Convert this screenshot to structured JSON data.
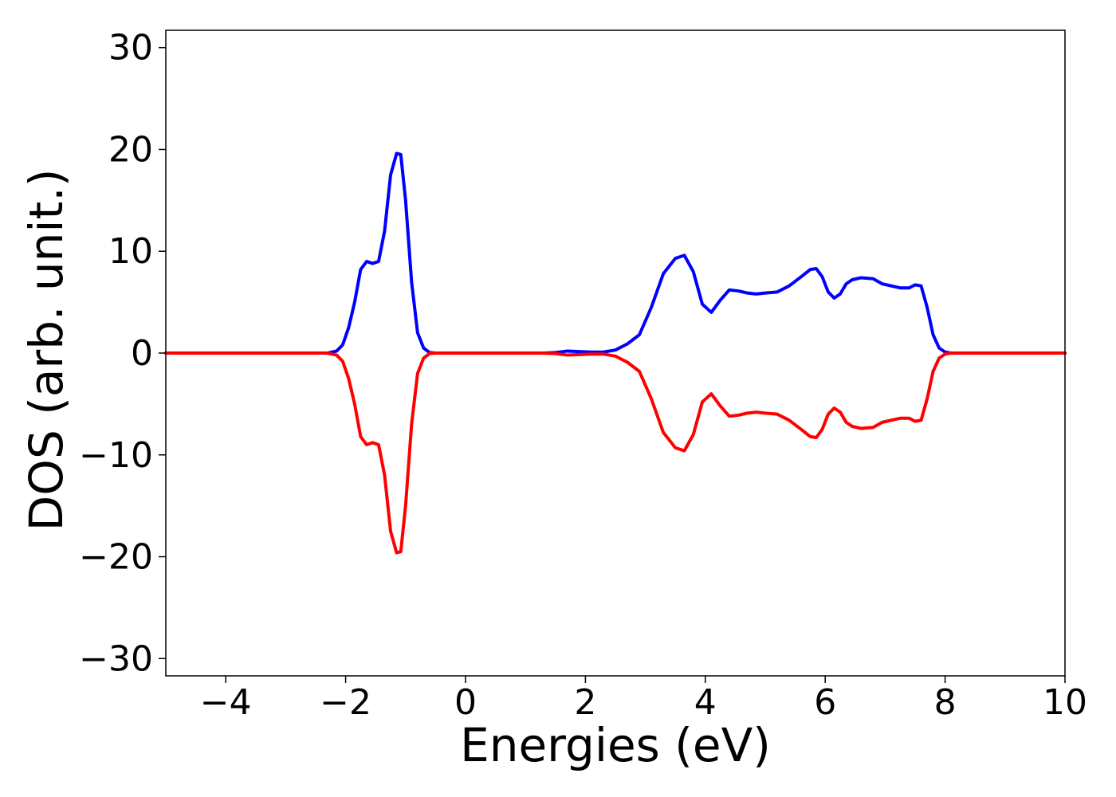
{
  "chart_data": {
    "type": "line",
    "title": "",
    "xlabel": "Energies (eV)",
    "ylabel": "DOS (arb. unit.)",
    "xlim": [
      -5,
      10
    ],
    "ylim": [
      -31.7,
      31.7
    ],
    "xticks": [
      -4,
      -2,
      0,
      2,
      4,
      6,
      8,
      10
    ],
    "yticks": [
      -30,
      -20,
      -10,
      0,
      10,
      20,
      30
    ],
    "xtick_labels": [
      "−4",
      "−2",
      "0",
      "2",
      "4",
      "6",
      "8",
      "10"
    ],
    "ytick_labels": [
      "−30",
      "−20",
      "−10",
      "0",
      "10",
      "20",
      "30"
    ],
    "grid": false,
    "legend": "none",
    "series": [
      {
        "color": "#0000ff",
        "x": [
          -5.0,
          -2.3,
          -2.15,
          -2.05,
          -1.95,
          -1.85,
          -1.75,
          -1.65,
          -1.55,
          -1.45,
          -1.35,
          -1.25,
          -1.15,
          -1.08,
          -1.0,
          -0.9,
          -0.8,
          -0.7,
          -0.6,
          -0.5,
          1.3,
          1.5,
          1.7,
          1.9,
          2.1,
          2.3,
          2.5,
          2.7,
          2.9,
          3.1,
          3.3,
          3.5,
          3.65,
          3.8,
          3.95,
          4.1,
          4.25,
          4.4,
          4.55,
          4.7,
          4.85,
          5.0,
          5.2,
          5.4,
          5.6,
          5.75,
          5.85,
          5.95,
          6.05,
          6.15,
          6.25,
          6.35,
          6.45,
          6.6,
          6.8,
          6.95,
          7.1,
          7.25,
          7.4,
          7.5,
          7.6,
          7.7,
          7.8,
          7.9,
          8.0,
          8.1,
          8.2,
          8.3,
          10.0
        ],
        "y": [
          0.0,
          0.0,
          0.2,
          0.8,
          2.5,
          5.0,
          8.2,
          9.0,
          8.8,
          9.0,
          12.0,
          17.5,
          19.6,
          19.5,
          15.0,
          7.0,
          2.0,
          0.5,
          0.05,
          0.0,
          0.0,
          0.05,
          0.2,
          0.15,
          0.1,
          0.1,
          0.3,
          0.9,
          1.8,
          4.5,
          7.8,
          9.3,
          9.6,
          8.0,
          4.8,
          4.0,
          5.2,
          6.2,
          6.1,
          5.9,
          5.8,
          5.9,
          6.0,
          6.6,
          7.5,
          8.2,
          8.3,
          7.5,
          6.0,
          5.4,
          5.8,
          6.8,
          7.2,
          7.4,
          7.3,
          6.8,
          6.6,
          6.4,
          6.4,
          6.7,
          6.6,
          4.5,
          1.8,
          0.5,
          0.1,
          0.0,
          0.0,
          0.0,
          0.0
        ]
      },
      {
        "color": "#ff0000",
        "x": [
          -5.0,
          -2.3,
          -2.15,
          -2.05,
          -1.95,
          -1.85,
          -1.75,
          -1.65,
          -1.55,
          -1.45,
          -1.35,
          -1.25,
          -1.15,
          -1.08,
          -1.0,
          -0.9,
          -0.8,
          -0.7,
          -0.6,
          -0.5,
          1.3,
          1.5,
          1.7,
          1.9,
          2.1,
          2.3,
          2.5,
          2.7,
          2.9,
          3.1,
          3.3,
          3.5,
          3.65,
          3.8,
          3.95,
          4.1,
          4.25,
          4.4,
          4.55,
          4.7,
          4.85,
          5.0,
          5.2,
          5.4,
          5.6,
          5.75,
          5.85,
          5.95,
          6.05,
          6.15,
          6.25,
          6.35,
          6.45,
          6.6,
          6.8,
          6.95,
          7.1,
          7.25,
          7.4,
          7.5,
          7.6,
          7.7,
          7.8,
          7.9,
          8.0,
          8.1,
          8.2,
          8.3,
          10.0
        ],
        "y": [
          0.0,
          0.0,
          -0.2,
          -0.8,
          -2.5,
          -5.0,
          -8.2,
          -9.0,
          -8.8,
          -9.0,
          -12.0,
          -17.5,
          -19.6,
          -19.5,
          -15.0,
          -7.0,
          -2.0,
          -0.5,
          -0.05,
          0.0,
          0.0,
          -0.05,
          -0.2,
          -0.15,
          -0.1,
          -0.1,
          -0.3,
          -0.9,
          -1.8,
          -4.5,
          -7.8,
          -9.3,
          -9.6,
          -8.0,
          -4.8,
          -4.0,
          -5.2,
          -6.2,
          -6.1,
          -5.9,
          -5.8,
          -5.9,
          -6.0,
          -6.6,
          -7.5,
          -8.2,
          -8.3,
          -7.5,
          -6.0,
          -5.4,
          -5.8,
          -6.8,
          -7.2,
          -7.4,
          -7.3,
          -6.8,
          -6.6,
          -6.4,
          -6.4,
          -6.7,
          -6.6,
          -4.5,
          -1.8,
          -0.5,
          -0.1,
          0.0,
          0.0,
          0.0,
          0.0
        ]
      }
    ]
  }
}
